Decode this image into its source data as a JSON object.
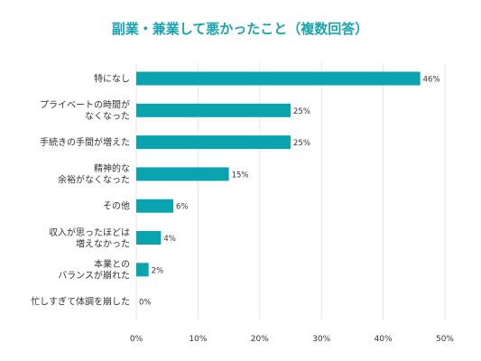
{
  "chart_data": {
    "type": "bar",
    "orientation": "horizontal",
    "title": "副業・兼業して悪かったこと（複数回答）",
    "categories": [
      "特になし",
      "プライベートの時間が\nなくなった",
      "手続きの手間が増えた",
      "精神的な\n余裕がなくなった",
      "その他",
      "収入が思ったほどは\n増えなかった",
      "本業との\nバランスが崩れた",
      "忙しすぎて体調を崩した"
    ],
    "values": [
      46,
      25,
      25,
      15,
      6,
      4,
      2,
      0
    ],
    "value_labels": [
      "46%",
      "25%",
      "25%",
      "15%",
      "6%",
      "4%",
      "2%",
      "0%"
    ],
    "xlim": [
      0,
      50
    ],
    "x_ticks": [
      "0%",
      "10%",
      "20%",
      "30%",
      "40%",
      "50%"
    ],
    "grid": true,
    "legend": "none",
    "bar_color": "#0aa3b0",
    "title_color": "#1aa3b0"
  }
}
